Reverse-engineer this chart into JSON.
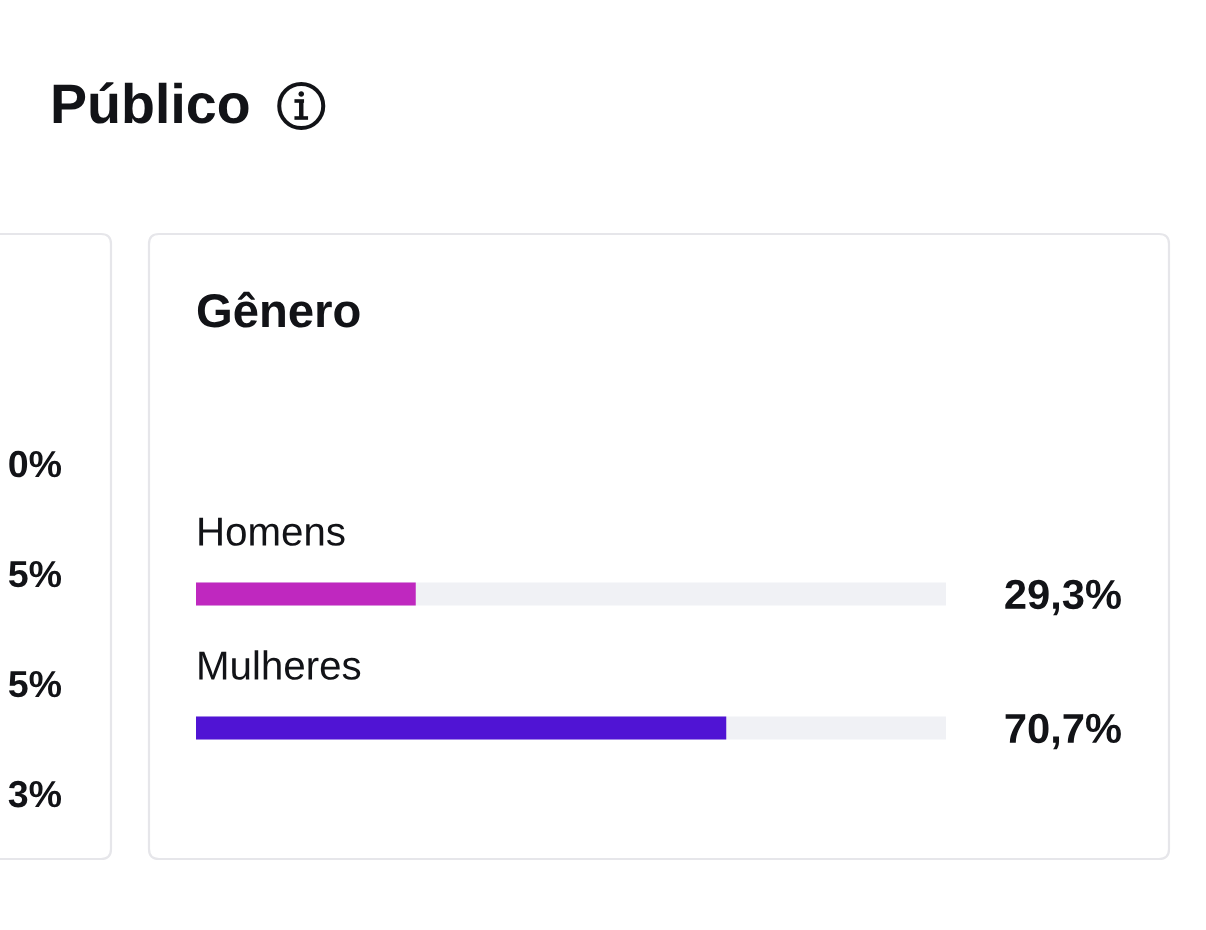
{
  "chart_data": [
    {
      "type": "other",
      "title": "Público",
      "annotations": [
        "0%",
        "5%",
        "5%",
        "3%"
      ]
    },
    {
      "type": "bar",
      "title": "Gênero",
      "orientation": "horizontal",
      "categories": [
        "Homens",
        "Mulheres"
      ],
      "values": [
        29.3,
        70.7
      ],
      "colors": [
        "#bf28bf",
        "#5014d4"
      ],
      "value_labels": [
        "29,3%",
        "70,7%"
      ],
      "xlim": [
        0,
        100
      ],
      "tick_labels": "y",
      "bands": [
        {
          "axis": "x",
          "from": 0,
          "to": 100,
          "color": "#f0f1f5"
        }
      ]
    }
  ]
}
